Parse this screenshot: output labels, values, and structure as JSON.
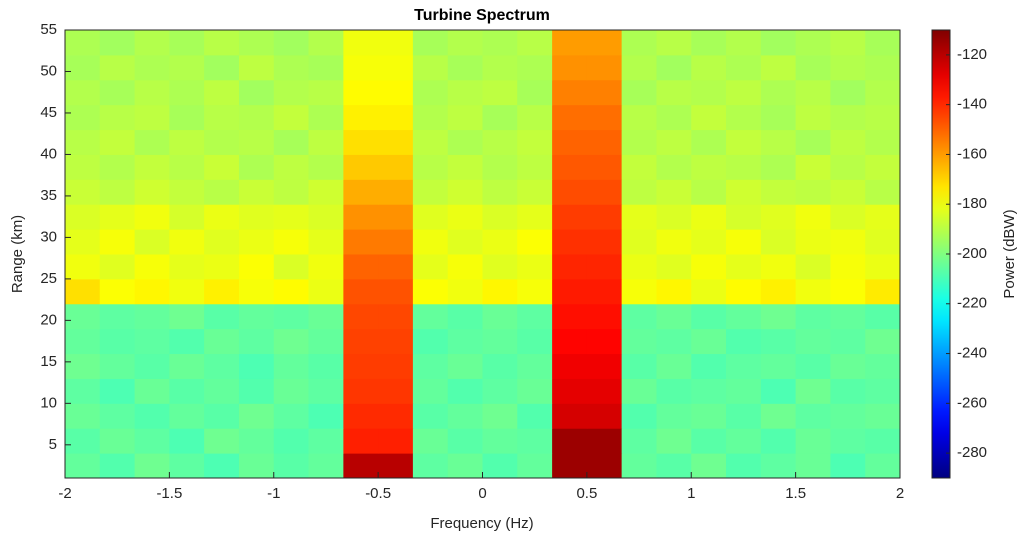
{
  "chart_data": {
    "type": "heatmap",
    "title": "Turbine Spectrum",
    "x_label": "Frequency (Hz)",
    "y_label": "Range (km)",
    "colorbar_label": "Power (dBW)",
    "colormap": "jet",
    "x": [
      -1.917,
      -1.75,
      -1.583,
      -1.417,
      -1.25,
      -1.083,
      -0.917,
      -0.75,
      -0.583,
      -0.417,
      -0.25,
      -0.083,
      0.083,
      0.25,
      0.417,
      0.583,
      0.75,
      0.917,
      1.083,
      1.25,
      1.417,
      1.583,
      1.75,
      1.917
    ],
    "y": [
      2.5,
      5.5,
      8.5,
      11.5,
      14.5,
      17.5,
      20.5,
      23.5,
      26.5,
      29.5,
      32.5,
      35.5,
      38.5,
      41.5,
      44.5,
      47.5,
      50.5,
      53.5
    ],
    "values": [
      [
        -205,
        -208,
        -203,
        -206,
        -209,
        -204,
        -207,
        -205,
        -120,
        -120,
        -206,
        -204,
        -208,
        -205,
        -115,
        -115,
        -205,
        -207,
        -203,
        -208,
        -206,
        -204,
        -209,
        -205
      ],
      [
        -207,
        -204,
        -206,
        -209,
        -203,
        -205,
        -208,
        -206,
        -138,
        -138,
        -204,
        -207,
        -205,
        -206,
        -115,
        -115,
        -206,
        -203,
        -207,
        -205,
        -208,
        -204,
        -206,
        -207
      ],
      [
        -204,
        -206,
        -208,
        -205,
        -207,
        -203,
        -206,
        -209,
        -140,
        -140,
        -207,
        -205,
        -203,
        -208,
        -125,
        -125,
        -208,
        -205,
        -204,
        -207,
        -203,
        -206,
        -205,
        -204
      ],
      [
        -206,
        -209,
        -204,
        -207,
        -205,
        -208,
        -204,
        -206,
        -142,
        -142,
        -205,
        -208,
        -206,
        -204,
        -128,
        -128,
        -204,
        -207,
        -206,
        -205,
        -209,
        -203,
        -207,
        -206
      ],
      [
        -203,
        -205,
        -207,
        -204,
        -206,
        -209,
        -205,
        -207,
        -143,
        -143,
        -206,
        -204,
        -207,
        -205,
        -130,
        -130,
        -207,
        -204,
        -208,
        -206,
        -205,
        -207,
        -204,
        -205
      ],
      [
        -205,
        -207,
        -206,
        -208,
        -204,
        -206,
        -203,
        -205,
        -144,
        -144,
        -208,
        -206,
        -205,
        -207,
        -133,
        -133,
        -205,
        -206,
        -204,
        -208,
        -207,
        -205,
        -206,
        -203
      ],
      [
        -204,
        -206,
        -205,
        -203,
        -207,
        -205,
        -206,
        -204,
        -145,
        -145,
        -205,
        -207,
        -204,
        -206,
        -135,
        -135,
        -206,
        -204,
        -207,
        -205,
        -203,
        -206,
        -205,
        -207
      ],
      [
        -172,
        -178,
        -176,
        -180,
        -175,
        -179,
        -177,
        -181,
        -147,
        -147,
        -178,
        -180,
        -176,
        -179,
        -137,
        -137,
        -179,
        -176,
        -181,
        -177,
        -175,
        -180,
        -178,
        -174
      ],
      [
        -180,
        -183,
        -179,
        -182,
        -181,
        -178,
        -184,
        -180,
        -150,
        -150,
        -182,
        -179,
        -183,
        -181,
        -139,
        -139,
        -181,
        -183,
        -179,
        -182,
        -180,
        -184,
        -179,
        -181
      ],
      [
        -182,
        -179,
        -184,
        -180,
        -183,
        -181,
        -179,
        -182,
        -154,
        -154,
        -180,
        -183,
        -181,
        -178,
        -141,
        -141,
        -183,
        -180,
        -182,
        -179,
        -184,
        -181,
        -180,
        -183
      ],
      [
        -184,
        -182,
        -180,
        -185,
        -181,
        -183,
        -182,
        -184,
        -158,
        -158,
        -183,
        -181,
        -184,
        -182,
        -143,
        -143,
        -182,
        -184,
        -181,
        -185,
        -183,
        -180,
        -184,
        -182
      ],
      [
        -187,
        -189,
        -186,
        -188,
        -190,
        -187,
        -189,
        -186,
        -163,
        -163,
        -188,
        -186,
        -189,
        -187,
        -146,
        -146,
        -189,
        -187,
        -190,
        -186,
        -188,
        -189,
        -187,
        -190
      ],
      [
        -189,
        -191,
        -188,
        -190,
        -187,
        -192,
        -189,
        -191,
        -168,
        -168,
        -190,
        -188,
        -191,
        -189,
        -148,
        -148,
        -188,
        -191,
        -189,
        -190,
        -192,
        -187,
        -190,
        -188
      ],
      [
        -190,
        -188,
        -192,
        -189,
        -191,
        -190,
        -193,
        -189,
        -172,
        -172,
        -189,
        -192,
        -190,
        -188,
        -150,
        -150,
        -191,
        -189,
        -192,
        -188,
        -190,
        -193,
        -189,
        -191
      ],
      [
        -192,
        -190,
        -189,
        -193,
        -190,
        -191,
        -188,
        -192,
        -175,
        -175,
        -191,
        -189,
        -193,
        -190,
        -152,
        -152,
        -190,
        -192,
        -188,
        -191,
        -193,
        -189,
        -191,
        -190
      ],
      [
        -191,
        -193,
        -190,
        -192,
        -189,
        -194,
        -191,
        -190,
        -177,
        -177,
        -192,
        -190,
        -189,
        -193,
        -155,
        -155,
        -193,
        -190,
        -191,
        -189,
        -192,
        -190,
        -194,
        -191
      ],
      [
        -193,
        -190,
        -192,
        -191,
        -194,
        -189,
        -192,
        -193,
        -179,
        -179,
        -190,
        -193,
        -191,
        -192,
        -158,
        -158,
        -191,
        -194,
        -190,
        -192,
        -189,
        -193,
        -191,
        -192
      ],
      [
        -192,
        -194,
        -191,
        -193,
        -190,
        -192,
        -194,
        -191,
        -180,
        -180,
        -193,
        -191,
        -192,
        -190,
        -160,
        -160,
        -192,
        -190,
        -193,
        -191,
        -194,
        -192,
        -190,
        -193
      ]
    ],
    "xlim": [
      -2,
      2
    ],
    "xticks": [
      -2,
      -1.5,
      -1,
      -0.5,
      0,
      0.5,
      1,
      1.5,
      2
    ],
    "ylim": [
      1,
      55
    ],
    "yticks": [
      5,
      10,
      15,
      20,
      25,
      30,
      35,
      40,
      45,
      50,
      55
    ],
    "clim": [
      -290,
      -110
    ],
    "cticks": [
      -280,
      -260,
      -240,
      -220,
      -200,
      -180,
      -160,
      -140,
      -120
    ]
  }
}
